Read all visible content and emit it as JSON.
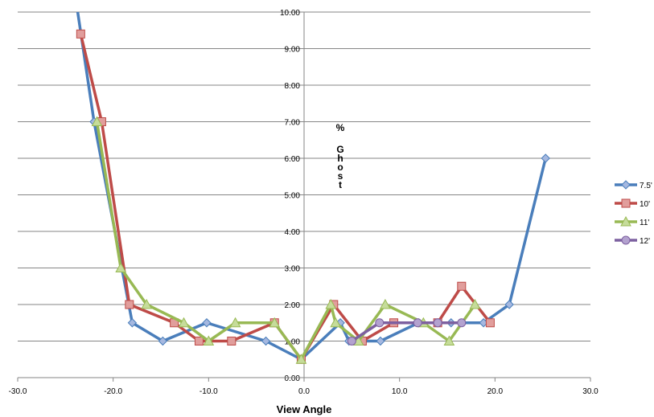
{
  "chart_data": {
    "type": "line",
    "xlabel": "View Angle",
    "ylabel": "% Ghost",
    "xlim": [
      -30,
      30
    ],
    "ylim": [
      0,
      10
    ],
    "x_ticks": [
      "-30.0",
      "-20.0",
      "-10.0",
      "0.0",
      "10.0",
      "20.0",
      "30.0"
    ],
    "y_ticks": [
      "0.00",
      "1.00",
      "2.00",
      "3.00",
      "4.00",
      "5.00",
      "6.00",
      "7.00",
      "8.00",
      "9.00",
      "10.00"
    ],
    "grid": "horizontal",
    "legend_position": "right",
    "series": [
      {
        "name": "7.5'",
        "color": "#4a7ebb",
        "marker": "diamond",
        "x": [
          -24.0,
          -22.0,
          -18.0,
          -14.8,
          -10.2,
          -4.0,
          -0.3,
          3.8,
          4.7,
          8.0,
          12.0,
          15.4,
          18.8,
          21.5,
          25.3
        ],
        "y": [
          10.5,
          7.0,
          1.5,
          1.0,
          1.5,
          1.0,
          0.5,
          1.5,
          1.0,
          1.0,
          1.5,
          1.5,
          1.5,
          2.0,
          6.0
        ]
      },
      {
        "name": "10'",
        "color": "#be4b48",
        "marker": "square",
        "x": [
          -23.4,
          -21.2,
          -18.3,
          -13.6,
          -11.0,
          -7.6,
          -3.1,
          -0.3,
          3.1,
          6.1,
          9.4,
          14.0,
          16.5,
          19.5
        ],
        "y": [
          9.4,
          7.0,
          2.0,
          1.5,
          1.0,
          1.0,
          1.5,
          0.5,
          2.0,
          1.0,
          1.5,
          1.5,
          2.5,
          1.5
        ]
      },
      {
        "name": "11'",
        "color": "#98b954",
        "marker": "triangle",
        "x": [
          -21.7,
          -19.2,
          -16.5,
          -12.6,
          -10.0,
          -7.2,
          -3.1,
          -0.3,
          2.8,
          3.3,
          5.7,
          8.5,
          12.5,
          15.2,
          17.9
        ],
        "y": [
          7.0,
          3.0,
          2.0,
          1.5,
          1.0,
          1.5,
          1.5,
          0.5,
          2.0,
          1.5,
          1.0,
          2.0,
          1.5,
          1.0,
          2.0
        ]
      },
      {
        "name": "12'",
        "color": "#7d60a0",
        "marker": "circle",
        "x": [
          5.0,
          7.9,
          11.9,
          14.0,
          16.5
        ],
        "y": [
          1.0,
          1.5,
          1.5,
          1.5,
          1.5
        ]
      }
    ]
  }
}
